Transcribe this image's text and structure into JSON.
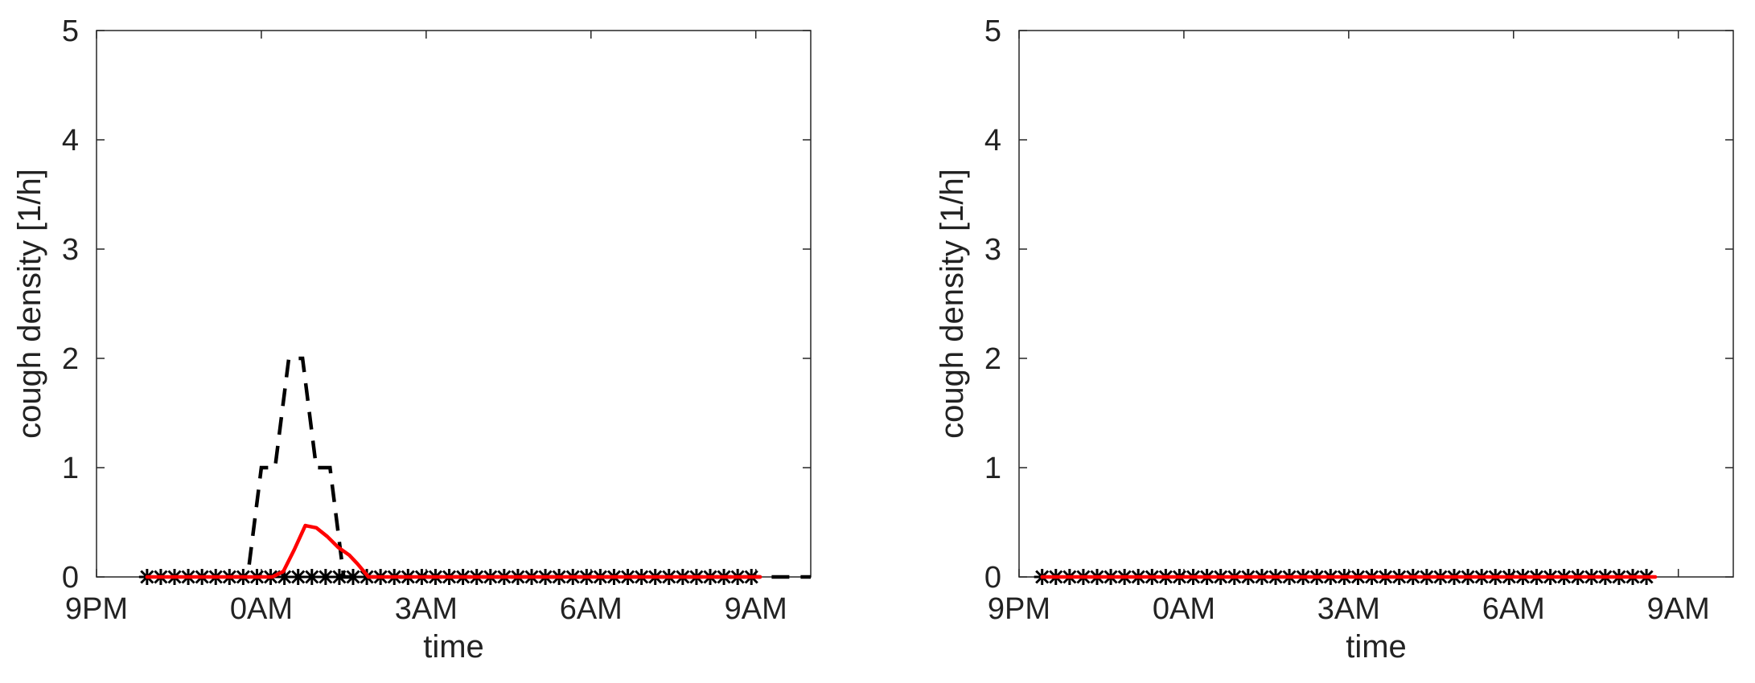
{
  "chart_data": [
    {
      "type": "line",
      "title": "",
      "xlabel": "time",
      "ylabel": "cough density [1/h]",
      "x_ticks": [
        "9PM",
        "0AM",
        "3AM",
        "6AM",
        "9AM"
      ],
      "x_tick_values": [
        0,
        3,
        6,
        9,
        12
      ],
      "xlim": [
        0,
        13
      ],
      "ylim": [
        0,
        5
      ],
      "y_ticks": [
        0,
        1,
        2,
        3,
        4,
        5
      ],
      "grid": false,
      "colors": {
        "dashed": "#000000",
        "solid": "#ff0000",
        "markers": "#000000"
      },
      "series": [
        {
          "style": "dashed-black",
          "x": [
            2.45,
            2.5,
            2.75,
            3.0,
            3.25,
            3.5,
            3.75,
            4.0,
            4.25,
            4.5,
            4.75,
            5.0,
            13.0
          ],
          "y": [
            0,
            0,
            0,
            1,
            1,
            2,
            2,
            1,
            1,
            0,
            0,
            0,
            0
          ]
        },
        {
          "style": "solid-red",
          "x": [
            0.92,
            3.2,
            3.4,
            3.6,
            3.8,
            4.0,
            4.2,
            4.4,
            4.6,
            4.75,
            4.95,
            12.08
          ],
          "y": [
            0,
            0,
            0.05,
            0.25,
            0.47,
            0.45,
            0.37,
            0.27,
            0.2,
            0.12,
            0,
            0
          ]
        },
        {
          "style": "star-markers",
          "x_start": 0.92,
          "x_end": 12.08,
          "step": 0.25,
          "y": 0
        }
      ]
    },
    {
      "type": "line",
      "title": "",
      "xlabel": "time",
      "ylabel": "cough density [1/h]",
      "x_ticks": [
        "9PM",
        "0AM",
        "3AM",
        "6AM",
        "9AM"
      ],
      "x_tick_values": [
        0,
        3,
        6,
        9,
        12
      ],
      "xlim": [
        0,
        13
      ],
      "ylim": [
        0,
        5
      ],
      "y_ticks": [
        0,
        1,
        2,
        3,
        4,
        5
      ],
      "grid": false,
      "colors": {
        "dashed": "#000000",
        "solid": "#ff0000",
        "markers": "#000000"
      },
      "series": [
        {
          "style": "solid-red",
          "x": [
            0.42,
            11.58
          ],
          "y": [
            0,
            0
          ]
        },
        {
          "style": "star-markers",
          "x_start": 0.42,
          "x_end": 11.58,
          "step": 0.25,
          "y": 0
        }
      ]
    }
  ]
}
